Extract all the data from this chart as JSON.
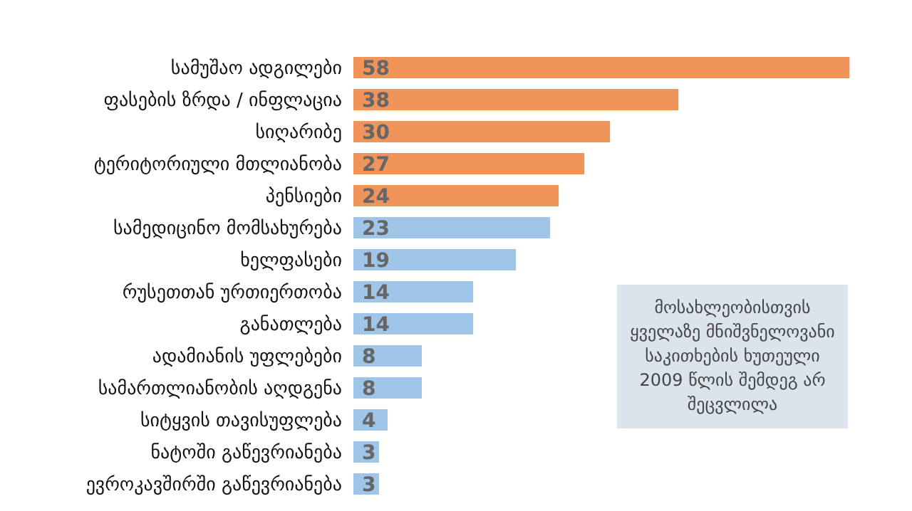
{
  "chart_data": {
    "type": "bar",
    "orientation": "horizontal",
    "data_labels": true,
    "categories": [
      "სამუშაო ადგილები",
      "ფასების ზრდა / ინფლაცია",
      "სიღარიბე",
      "ტერიტორიული მთლიანობა",
      "პენსიები",
      "სამედიცინო მომსახურება",
      "ხელფასები",
      "რუსეთთან ურთიერთობა",
      "განათლება",
      "ადამიანის უფლებები",
      "სამართლიანობის აღდგენა",
      "სიტყვის თავისუფლება",
      "ნატოში გაწევრიანება",
      "ევროკავშირში გაწევრიანება"
    ],
    "values": [
      58,
      38,
      30,
      27,
      24,
      23,
      19,
      14,
      14,
      8,
      8,
      4,
      3,
      3
    ],
    "colors": [
      "#f0945a",
      "#f0945a",
      "#f0945a",
      "#f0945a",
      "#f0945a",
      "#9fc5e8",
      "#9fc5e8",
      "#9fc5e8",
      "#9fc5e8",
      "#9fc5e8",
      "#9fc5e8",
      "#9fc5e8",
      "#9fc5e8",
      "#9fc5e8"
    ],
    "annotations": [
      "მოსახლეობისთვის ყველაზე მნიშვნელოვანი საკითხების ხუთეული 2009 წლის შემდეგ არ შეცვლილა"
    ]
  }
}
